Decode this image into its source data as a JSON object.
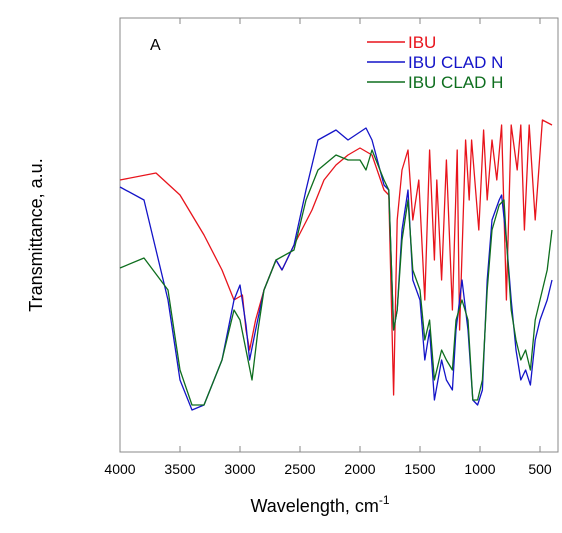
{
  "chart_data": {
    "type": "line",
    "panel_label": "A",
    "xlabel": "Wavelength, cm",
    "xlabel_superscript": "-1",
    "ylabel": "Transmittance, a.u.",
    "xlim": [
      4000,
      350
    ],
    "xticks": [
      4000,
      3500,
      3000,
      2500,
      2000,
      1500,
      1000,
      500
    ],
    "ylim": [
      0,
      434
    ],
    "legend": "upper right",
    "series": [
      {
        "name": "IBU",
        "color": "#e8141c",
        "x": [
          4000,
          3700,
          3500,
          3300,
          3150,
          3050,
          2980,
          2950,
          2920,
          2870,
          2800,
          2700,
          2650,
          2550,
          2400,
          2300,
          2200,
          2100,
          2000,
          1900,
          1800,
          1760,
          1720,
          1690,
          1650,
          1600,
          1560,
          1510,
          1460,
          1420,
          1380,
          1360,
          1320,
          1280,
          1230,
          1190,
          1170,
          1120,
          1090,
          1070,
          1010,
          970,
          940,
          900,
          860,
          820,
          780,
          740,
          690,
          660,
          630,
          590,
          540,
          480,
          400
        ],
        "values": [
          272,
          279,
          257,
          217,
          182,
          152,
          157,
          122,
          102,
          132,
          162,
          192,
          182,
          207,
          242,
          272,
          287,
          297,
          304,
          297,
          262,
          257,
          57,
          232,
          282,
          302,
          232,
          272,
          152,
          302,
          192,
          272,
          172,
          292,
          142,
          302,
          122,
          312,
          252,
          312,
          222,
          322,
          252,
          312,
          272,
          327,
          152,
          327,
          282,
          327,
          222,
          327,
          232,
          332,
          327
        ]
      },
      {
        "name": "IBU CLAD N",
        "color": "#1414c8",
        "x": [
          4000,
          3800,
          3600,
          3500,
          3400,
          3300,
          3150,
          3050,
          3000,
          2950,
          2920,
          2870,
          2800,
          2700,
          2650,
          2550,
          2450,
          2350,
          2200,
          2100,
          2000,
          1950,
          1900,
          1800,
          1760,
          1720,
          1690,
          1650,
          1600,
          1560,
          1500,
          1460,
          1420,
          1380,
          1320,
          1280,
          1230,
          1200,
          1150,
          1100,
          1060,
          1020,
          980,
          940,
          900,
          840,
          820,
          780,
          740,
          700,
          660,
          620,
          580,
          540,
          500,
          440,
          400
        ],
        "values": [
          265,
          252,
          152,
          72,
          42,
          47,
          92,
          152,
          167,
          127,
          92,
          122,
          162,
          192,
          182,
          207,
          262,
          312,
          322,
          312,
          320,
          324,
          312,
          267,
          262,
          122,
          142,
          222,
          262,
          172,
          152,
          92,
          122,
          52,
          92,
          72,
          62,
          122,
          172,
          122,
          52,
          47,
          62,
          172,
          232,
          252,
          257,
          212,
          152,
          102,
          72,
          82,
          67,
          112,
          132,
          152,
          172
        ]
      },
      {
        "name": "IBU CLAD H",
        "color": "#0e6e1e",
        "x": [
          4000,
          3800,
          3600,
          3500,
          3400,
          3300,
          3150,
          3050,
          3000,
          2950,
          2900,
          2850,
          2800,
          2700,
          2550,
          2450,
          2350,
          2200,
          2100,
          2000,
          1950,
          1900,
          1800,
          1760,
          1720,
          1690,
          1650,
          1600,
          1560,
          1500,
          1460,
          1420,
          1380,
          1320,
          1280,
          1230,
          1200,
          1150,
          1100,
          1060,
          1020,
          980,
          940,
          900,
          840,
          800,
          780,
          740,
          700,
          660,
          620,
          580,
          540,
          500,
          440,
          400
        ],
        "values": [
          184,
          194,
          162,
          82,
          47,
          47,
          92,
          142,
          132,
          102,
          72,
          122,
          162,
          192,
          202,
          252,
          282,
          297,
          292,
          292,
          282,
          302,
          272,
          262,
          122,
          142,
          212,
          252,
          182,
          162,
          112,
          132,
          72,
          102,
          92,
          82,
          132,
          152,
          132,
          52,
          52,
          72,
          162,
          222,
          247,
          252,
          212,
          142,
          112,
          92,
          102,
          82,
          132,
          152,
          182,
          222
        ]
      }
    ]
  }
}
